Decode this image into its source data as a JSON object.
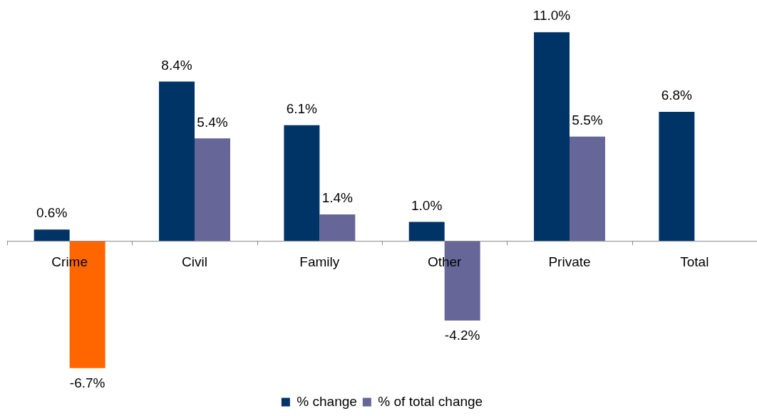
{
  "chart_data": {
    "type": "bar",
    "categories": [
      "Crime",
      "Civil",
      "Family",
      "Other",
      "Private",
      "Total"
    ],
    "series": [
      {
        "name": "% change",
        "color": "#003366",
        "values": [
          0.6,
          8.4,
          6.1,
          1.0,
          11.0,
          6.8
        ],
        "value_labels": [
          "0.6%",
          "8.4%",
          "6.1%",
          "1.0%",
          "11.0%",
          "6.8%"
        ]
      },
      {
        "name": "% of total change",
        "color": "#666699",
        "colors": [
          "#ff6600",
          "#666699",
          "#666699",
          "#666699",
          "#666699",
          null
        ],
        "values": [
          -6.7,
          5.4,
          1.4,
          -4.2,
          5.5,
          null
        ],
        "value_labels": [
          "-6.7%",
          "5.4%",
          "1.4%",
          "-4.2%",
          "5.5%",
          null
        ]
      }
    ],
    "legend": "bottom",
    "grid": false
  }
}
